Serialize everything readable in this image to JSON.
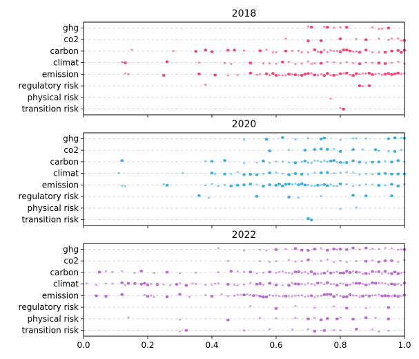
{
  "chart_data": {
    "type": "scatter",
    "keywords": [
      "ghg",
      "co2",
      "carbon",
      "climat",
      "emission",
      "regulatory risk",
      "physical risk",
      "transition risk"
    ],
    "xlim": [
      0.0,
      1.0
    ],
    "xticks": [
      0.0,
      0.2,
      0.4,
      0.6,
      0.8,
      1.0
    ],
    "xtick_labels": [
      "0.0",
      "0.2",
      "0.4",
      "0.6",
      "0.8",
      "1.0"
    ],
    "grid": "horizontal dashed",
    "panels": [
      {
        "title": "2018",
        "color": "#f5245e",
        "xtick_labels_visible": false,
        "series": [
          {
            "keyword": "ghg",
            "x": [
              0.7,
              0.71,
              0.75,
              0.76,
              0.78,
              0.8,
              0.82,
              0.9,
              0.92,
              0.93,
              0.95
            ]
          },
          {
            "keyword": "co2",
            "x": [
              0.63,
              0.7,
              0.74,
              0.8,
              0.85,
              0.88,
              0.92,
              0.95,
              0.96,
              0.98,
              0.99,
              1.0
            ]
          },
          {
            "keyword": "carbon",
            "x": [
              0.15,
              0.28,
              0.35,
              0.38,
              0.4,
              0.45,
              0.47,
              0.5,
              0.55,
              0.57,
              0.59,
              0.6,
              0.63,
              0.65,
              0.67,
              0.68,
              0.7,
              0.72,
              0.73,
              0.74,
              0.75,
              0.76,
              0.77,
              0.78,
              0.79,
              0.8,
              0.81,
              0.82,
              0.83,
              0.84,
              0.85,
              0.86,
              0.88,
              0.9,
              0.92,
              0.94,
              0.96,
              0.98,
              0.99,
              1.0
            ]
          },
          {
            "keyword": "climat",
            "x": [
              0.12,
              0.13,
              0.26,
              0.36,
              0.44,
              0.46,
              0.52,
              0.56,
              0.58,
              0.6,
              0.62,
              0.64,
              0.66,
              0.68,
              0.7,
              0.71,
              0.72,
              0.74,
              0.76,
              0.78,
              0.8,
              0.82,
              0.84,
              0.86,
              0.88,
              0.9,
              0.92,
              0.94,
              0.96,
              0.98,
              1.0
            ]
          },
          {
            "keyword": "emission",
            "x": [
              0.13,
              0.14,
              0.25,
              0.36,
              0.41,
              0.45,
              0.48,
              0.52,
              0.54,
              0.55,
              0.57,
              0.58,
              0.59,
              0.6,
              0.61,
              0.62,
              0.63,
              0.64,
              0.65,
              0.66,
              0.67,
              0.68,
              0.69,
              0.7,
              0.71,
              0.72,
              0.73,
              0.74,
              0.75,
              0.76,
              0.77,
              0.78,
              0.79,
              0.8,
              0.81,
              0.82,
              0.83,
              0.84,
              0.85,
              0.86,
              0.87,
              0.88,
              0.89,
              0.9,
              0.91,
              0.92,
              0.93,
              0.94,
              0.95,
              0.96,
              0.97,
              0.98,
              0.99,
              1.0
            ]
          },
          {
            "keyword": "regulatory risk",
            "x": [
              0.38,
              0.86,
              0.87,
              0.89
            ]
          },
          {
            "keyword": "physical risk",
            "x": [
              0.77
            ]
          },
          {
            "keyword": "transition risk",
            "x": [
              0.8,
              0.81
            ]
          }
        ]
      },
      {
        "title": "2020",
        "color": "#1aa3d9",
        "xtick_labels_visible": false,
        "series": [
          {
            "keyword": "ghg",
            "x": [
              0.5,
              0.57,
              0.62,
              0.66,
              0.7,
              0.74,
              0.75,
              0.8,
              0.84,
              0.85,
              0.88,
              0.95,
              0.97,
              0.99,
              1.0
            ]
          },
          {
            "keyword": "co2",
            "x": [
              0.58,
              0.64,
              0.69,
              0.72,
              0.74,
              0.76,
              0.78,
              0.8,
              0.84,
              0.87,
              0.91,
              0.92,
              0.95,
              0.97,
              0.99
            ]
          },
          {
            "keyword": "carbon",
            "x": [
              0.12,
              0.38,
              0.4,
              0.44,
              0.5,
              0.54,
              0.56,
              0.58,
              0.6,
              0.62,
              0.64,
              0.66,
              0.68,
              0.69,
              0.7,
              0.71,
              0.72,
              0.73,
              0.74,
              0.75,
              0.76,
              0.77,
              0.78,
              0.79,
              0.8,
              0.81,
              0.82,
              0.84,
              0.86,
              0.88,
              0.9,
              0.92,
              0.94,
              0.96,
              0.98,
              1.0
            ]
          },
          {
            "keyword": "climat",
            "x": [
              0.11,
              0.31,
              0.4,
              0.41,
              0.44,
              0.46,
              0.48,
              0.5,
              0.52,
              0.54,
              0.56,
              0.58,
              0.6,
              0.62,
              0.64,
              0.66,
              0.68,
              0.7,
              0.72,
              0.74,
              0.76,
              0.78,
              0.8,
              0.82,
              0.84,
              0.86,
              0.88,
              0.9,
              0.92,
              0.94,
              0.96,
              0.98,
              1.0
            ]
          },
          {
            "keyword": "emission",
            "x": [
              0.12,
              0.13,
              0.25,
              0.26,
              0.38,
              0.4,
              0.42,
              0.44,
              0.46,
              0.48,
              0.5,
              0.52,
              0.54,
              0.56,
              0.58,
              0.6,
              0.61,
              0.62,
              0.63,
              0.64,
              0.65,
              0.66,
              0.67,
              0.68,
              0.69,
              0.7,
              0.71,
              0.72,
              0.73,
              0.74,
              0.75,
              0.76,
              0.77,
              0.78,
              0.79,
              0.8,
              0.82,
              0.84,
              0.86,
              0.88,
              0.9,
              0.92,
              0.94,
              0.96,
              0.98,
              1.0
            ]
          },
          {
            "keyword": "regulatory risk",
            "x": [
              0.36,
              0.39,
              0.54,
              0.64,
              0.67,
              0.74,
              0.84,
              0.88,
              0.96
            ]
          },
          {
            "keyword": "physical risk",
            "x": [
              0.8,
              0.85
            ]
          },
          {
            "keyword": "transition risk",
            "x": [
              0.7,
              0.71
            ]
          }
        ]
      },
      {
        "title": "2022",
        "color": "#b252c7",
        "xtick_labels_visible": true,
        "series": [
          {
            "keyword": "ghg",
            "x": [
              0.42,
              0.5,
              0.55,
              0.57,
              0.6,
              0.63,
              0.66,
              0.68,
              0.7,
              0.72,
              0.74,
              0.76,
              0.78,
              0.79,
              0.8,
              0.82,
              0.84,
              0.86,
              0.88,
              0.9,
              0.92,
              0.94,
              0.96,
              0.98,
              0.99,
              1.0
            ]
          },
          {
            "keyword": "co2",
            "x": [
              0.45,
              0.55,
              0.58,
              0.6,
              0.64,
              0.66,
              0.68,
              0.7,
              0.74,
              0.76,
              0.78,
              0.8,
              0.82,
              0.85,
              0.88,
              0.9,
              0.92,
              0.94,
              0.96,
              0.98,
              1.0
            ]
          },
          {
            "keyword": "carbon",
            "x": [
              0.05,
              0.07,
              0.09,
              0.12,
              0.16,
              0.18,
              0.22,
              0.26,
              0.3,
              0.35,
              0.42,
              0.46,
              0.48,
              0.5,
              0.52,
              0.54,
              0.56,
              0.58,
              0.6,
              0.61,
              0.62,
              0.63,
              0.64,
              0.65,
              0.66,
              0.67,
              0.68,
              0.69,
              0.7,
              0.71,
              0.72,
              0.73,
              0.74,
              0.75,
              0.76,
              0.77,
              0.78,
              0.79,
              0.8,
              0.81,
              0.82,
              0.83,
              0.84,
              0.85,
              0.86,
              0.87,
              0.88,
              0.89,
              0.9,
              0.91,
              0.92,
              0.93,
              0.94,
              0.95,
              0.96,
              0.97,
              0.98,
              0.99,
              1.0
            ]
          },
          {
            "keyword": "climat",
            "x": [
              0.01,
              0.04,
              0.07,
              0.09,
              0.12,
              0.13,
              0.14,
              0.16,
              0.18,
              0.19,
              0.2,
              0.21,
              0.23,
              0.25,
              0.27,
              0.29,
              0.3,
              0.32,
              0.34,
              0.35,
              0.38,
              0.4,
              0.41,
              0.42,
              0.45,
              0.47,
              0.48,
              0.5,
              0.52,
              0.54,
              0.55,
              0.56,
              0.58,
              0.6,
              0.62,
              0.64,
              0.65,
              0.66,
              0.67,
              0.68,
              0.69,
              0.7,
              0.71,
              0.72,
              0.73,
              0.74,
              0.75,
              0.76,
              0.77,
              0.78,
              0.79,
              0.8,
              0.81,
              0.82,
              0.83,
              0.84,
              0.85,
              0.86,
              0.87,
              0.88,
              0.89,
              0.9,
              0.91,
              0.92,
              0.93,
              0.94,
              0.95,
              0.96,
              0.97,
              0.98,
              0.99,
              1.0
            ]
          },
          {
            "keyword": "emission",
            "x": [
              0.04,
              0.07,
              0.12,
              0.19,
              0.2,
              0.21,
              0.22,
              0.26,
              0.3,
              0.33,
              0.38,
              0.4,
              0.43,
              0.45,
              0.47,
              0.48,
              0.49,
              0.5,
              0.51,
              0.52,
              0.53,
              0.54,
              0.55,
              0.56,
              0.57,
              0.58,
              0.59,
              0.6,
              0.61,
              0.62,
              0.63,
              0.64,
              0.65,
              0.66,
              0.67,
              0.68,
              0.69,
              0.7,
              0.71,
              0.72,
              0.73,
              0.74,
              0.75,
              0.76,
              0.77,
              0.78,
              0.79,
              0.8,
              0.81,
              0.82,
              0.83,
              0.84,
              0.85,
              0.86,
              0.87,
              0.88,
              0.89,
              0.9,
              0.91,
              0.92,
              0.93,
              0.94,
              0.95,
              0.96,
              0.97,
              0.98,
              0.99,
              1.0
            ]
          },
          {
            "keyword": "regulatory risk",
            "x": [
              0.52,
              0.6,
              0.66,
              0.72,
              0.78,
              0.82,
              0.88,
              0.95
            ]
          },
          {
            "keyword": "physical risk",
            "x": [
              0.14,
              0.3,
              0.45,
              0.55,
              0.6,
              0.66,
              0.7,
              0.72,
              0.74,
              0.76,
              0.79,
              0.8,
              0.84,
              0.88,
              0.91,
              0.95
            ]
          },
          {
            "keyword": "transition risk",
            "x": [
              0.3,
              0.32,
              0.5,
              0.58,
              0.65,
              0.7,
              0.72,
              0.75,
              0.78,
              0.8,
              0.85,
              0.9,
              0.92,
              0.95
            ]
          }
        ]
      }
    ]
  }
}
